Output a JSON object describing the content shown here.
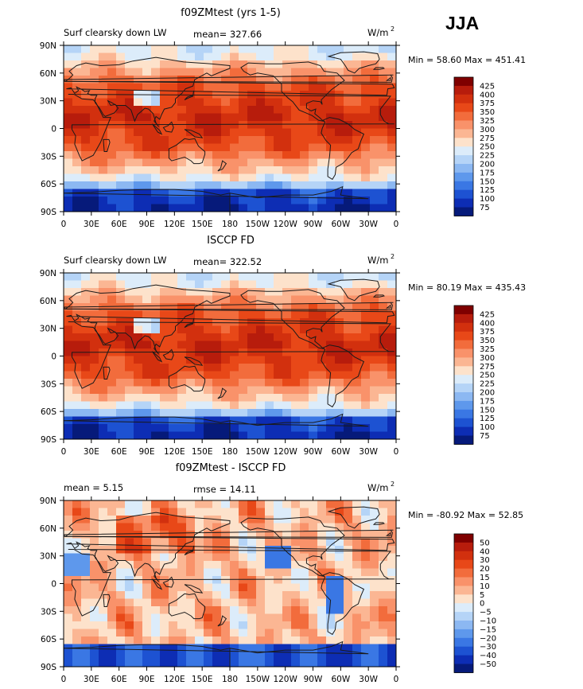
{
  "season": "JJA",
  "colors": {
    "land_outline": "#1a1a1a",
    "frame": "#000000"
  },
  "longitude_ticks": [
    "0",
    "30E",
    "60E",
    "90E",
    "120E",
    "150E",
    "180",
    "150W",
    "120W",
    "90W",
    "60W",
    "30W",
    "0"
  ],
  "latitude_ticks": [
    "90N",
    "60N",
    "30N",
    "0",
    "30S",
    "60S",
    "90S"
  ],
  "chart_data": [
    {
      "type": "heatmap",
      "title": "f09ZMtest (yrs 1-5)",
      "left_label": "Surf clearsky down LW",
      "center_label": "mean= 327.66",
      "units": "W/m",
      "units_exp": "2",
      "minmax": "Min =  58.60 Max = 451.41",
      "field": "absolute",
      "colorbar": {
        "levels": [
          425,
          400,
          375,
          350,
          325,
          300,
          275,
          250,
          225,
          200,
          175,
          150,
          125,
          100,
          75
        ],
        "labels": [
          "425",
          "400",
          "375",
          "350",
          "325",
          "300",
          "275",
          "250",
          "225",
          "200",
          "175",
          "150",
          "125",
          "100",
          "75"
        ],
        "colors": [
          "#7f0000",
          "#b71c0c",
          "#d2300e",
          "#e84818",
          "#f26c3c",
          "#f9926a",
          "#fbb693",
          "#fde2cb",
          "#dcecfa",
          "#b5d4f7",
          "#8cb8f2",
          "#5e98ec",
          "#3a77e4",
          "#1d52d2",
          "#0d2db4",
          "#061a7a"
        ]
      }
    },
    {
      "type": "heatmap",
      "title": "ISCCP FD",
      "left_label": "Surf clearsky down LW",
      "center_label": "mean= 322.52",
      "units": "W/m",
      "units_exp": "2",
      "minmax": "Min =  80.19 Max = 435.43",
      "field": "absolute",
      "colorbar": {
        "levels": [
          425,
          400,
          375,
          350,
          325,
          300,
          275,
          250,
          225,
          200,
          175,
          150,
          125,
          100,
          75
        ],
        "labels": [
          "425",
          "400",
          "375",
          "350",
          "325",
          "300",
          "275",
          "250",
          "225",
          "200",
          "175",
          "150",
          "125",
          "100",
          "75"
        ],
        "colors": [
          "#7f0000",
          "#b71c0c",
          "#d2300e",
          "#e84818",
          "#f26c3c",
          "#f9926a",
          "#fbb693",
          "#fde2cb",
          "#dcecfa",
          "#b5d4f7",
          "#8cb8f2",
          "#5e98ec",
          "#3a77e4",
          "#1d52d2",
          "#0d2db4",
          "#061a7a"
        ]
      }
    },
    {
      "type": "heatmap",
      "title": "f09ZMtest - ISCCP FD",
      "left_label": "mean =    5.15",
      "center_label": "rmse =   14.11",
      "units": "W/m",
      "units_exp": "2",
      "minmax": "Min = -80.92 Max =  52.85",
      "field": "difference",
      "colorbar": {
        "levels": [
          50,
          40,
          30,
          20,
          15,
          10,
          5,
          0,
          -5,
          -10,
          -15,
          -20,
          -30,
          -40,
          -50
        ],
        "labels": [
          "50",
          "40",
          "30",
          "20",
          "15",
          "10",
          "5",
          "0",
          "−5",
          "−10",
          "−15",
          "−20",
          "−30",
          "−40",
          "−50"
        ],
        "colors": [
          "#7f0000",
          "#b71c0c",
          "#d2300e",
          "#e84818",
          "#f26c3c",
          "#f9926a",
          "#fbb693",
          "#fde2cb",
          "#dcecfa",
          "#b5d4f7",
          "#8cb8f2",
          "#5e98ec",
          "#3a77e4",
          "#1d52d2",
          "#0d2db4",
          "#061a7a"
        ]
      }
    }
  ]
}
